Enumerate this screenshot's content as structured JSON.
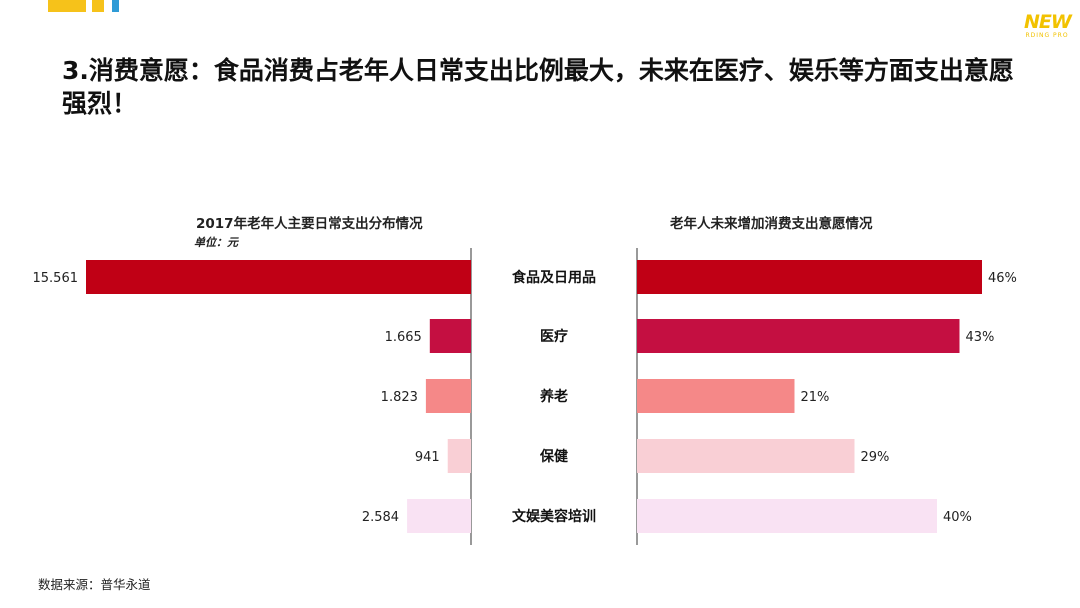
{
  "headline": "3.消费意愿：食品消费占老年人日常支出比例最大，未来在医疗、娱乐等方面支出意愿强烈！",
  "logo": {
    "main": "NEW",
    "sub": "RDING PRO"
  },
  "source": "数据来源：普华永道",
  "colors": [
    "#c00015",
    "#c40f41",
    "#f58888",
    "#f9cfd5",
    "#f9e2f3"
  ],
  "chart_data": [
    {
      "type": "bar",
      "title": "2017年老年人主要日常支出分布情况",
      "unit": "单位：元",
      "categories": [
        "食品及日用品",
        "医疗",
        "养老",
        "保健",
        "文娱美容培训"
      ],
      "values": [
        15561,
        1665,
        1823,
        941,
        2584
      ],
      "value_labels": [
        "15.561",
        "1.665",
        "1.823",
        "941",
        "2.584"
      ],
      "orientation": "horizontal",
      "direction": "leftward"
    },
    {
      "type": "bar",
      "title": "老年人未来增加消费支出意愿情况",
      "categories": [
        "食品及日用品",
        "医疗",
        "养老",
        "保健",
        "文娱美容培训"
      ],
      "values": [
        46,
        43,
        21,
        29,
        40
      ],
      "value_labels": [
        "46%",
        "43%",
        "21%",
        "29%",
        "40%"
      ],
      "orientation": "horizontal",
      "direction": "rightward"
    }
  ]
}
